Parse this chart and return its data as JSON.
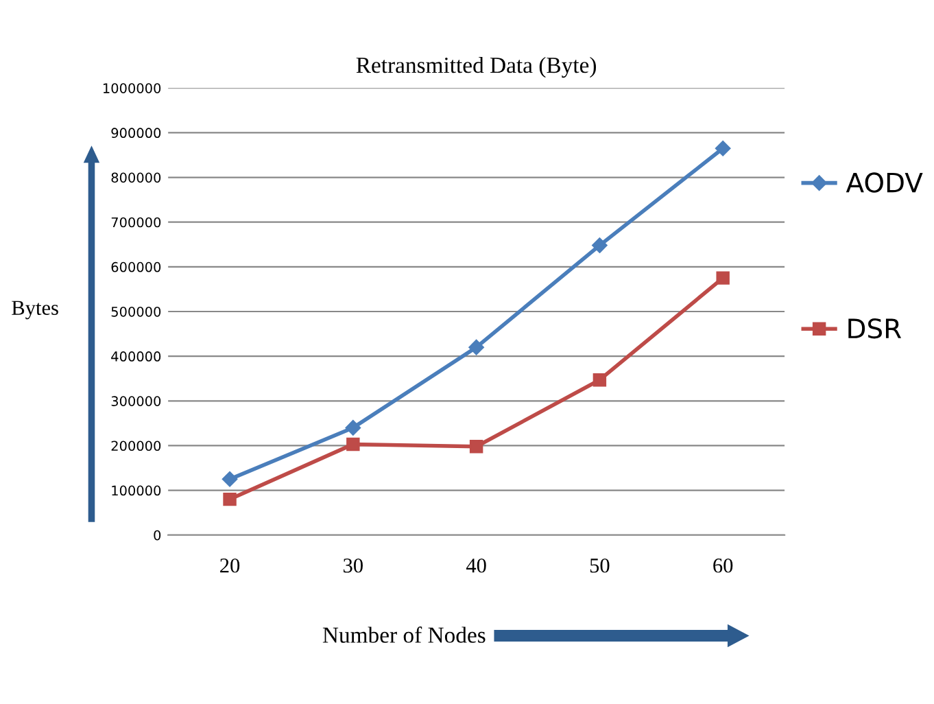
{
  "chart_data": {
    "type": "line",
    "title": "Retransmitted Data (Byte)",
    "xlabel": "Number of Nodes",
    "ylabel": "Bytes",
    "categories": [
      "20",
      "30",
      "40",
      "50",
      "60"
    ],
    "series": [
      {
        "name": "AODV",
        "color": "#4a7ebb",
        "marker": "diamond",
        "values": [
          125000,
          240000,
          420000,
          648000,
          865000
        ]
      },
      {
        "name": "DSR",
        "color": "#be4b48",
        "marker": "square",
        "values": [
          80000,
          203000,
          198000,
          347000,
          575000
        ]
      }
    ],
    "ylim": [
      0,
      1000000
    ],
    "yticks": [
      0,
      100000,
      200000,
      300000,
      400000,
      500000,
      600000,
      700000,
      800000,
      900000,
      1000000
    ],
    "grid": "y",
    "legend": "right",
    "line_style": "solid"
  }
}
